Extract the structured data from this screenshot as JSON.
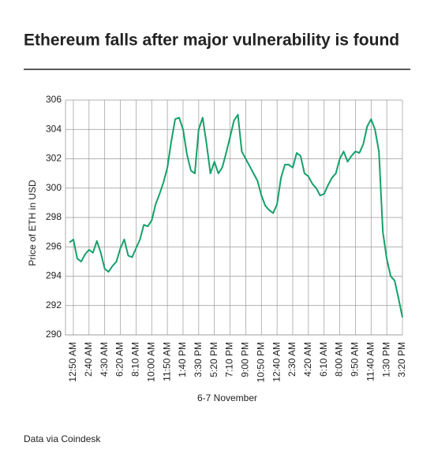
{
  "chart_data": {
    "type": "line",
    "title": "Ethereum falls after major vulnerability is found",
    "ylabel": "Price of ETH in USD",
    "xlabel": "6-7 November",
    "source": "Data via Coindesk",
    "categories": [
      null,
      "12:50 AM",
      null,
      null,
      null,
      "2:40 AM",
      null,
      null,
      null,
      "4:30 AM",
      null,
      null,
      null,
      "6:20 AM",
      null,
      null,
      null,
      "8:10 AM",
      null,
      null,
      null,
      "10:00 AM",
      null,
      null,
      null,
      "11:50 AM",
      null,
      null,
      null,
      "1:40 PM",
      null,
      null,
      null,
      "3:30 PM",
      null,
      null,
      null,
      "5:20 PM",
      null,
      null,
      null,
      "7:10 PM",
      null,
      null,
      null,
      "9:00 PM",
      null,
      null,
      null,
      "10:50 PM",
      null,
      null,
      null,
      "12:40 AM",
      null,
      null,
      null,
      "2:30 AM",
      null,
      null,
      null,
      "4:20 AM",
      null,
      null,
      null,
      "6:10 AM",
      null,
      null,
      null,
      "8:00 AM",
      null,
      null,
      null,
      "9:50 AM",
      null,
      null,
      null,
      "11:40 AM",
      null,
      null,
      null,
      "1:30 PM",
      null,
      null,
      null,
      "3:20 PM"
    ],
    "values": [
      296.3,
      296.5,
      295.2,
      295.0,
      295.5,
      295.8,
      295.6,
      296.4,
      295.6,
      294.5,
      294.3,
      294.7,
      295.0,
      295.9,
      296.5,
      295.4,
      295.3,
      295.9,
      296.5,
      297.5,
      297.4,
      297.8,
      298.9,
      299.6,
      300.4,
      301.4,
      303.2,
      304.7,
      304.8,
      304.0,
      302.3,
      301.2,
      301.0,
      304.0,
      304.8,
      303.0,
      301.0,
      301.8,
      301.0,
      301.4,
      302.4,
      303.5,
      304.6,
      305.0,
      302.5,
      302.0,
      301.5,
      301.0,
      300.5,
      299.5,
      298.8,
      298.5,
      298.3,
      298.9,
      300.7,
      301.6,
      301.6,
      301.4,
      302.4,
      302.2,
      301.0,
      300.8,
      300.3,
      300.0,
      299.5,
      299.6,
      300.2,
      300.7,
      301.0,
      302.0,
      302.5,
      301.8,
      302.2,
      302.5,
      302.4,
      303.0,
      304.2,
      304.7,
      304.0,
      302.5,
      297.0,
      295.2,
      294.0,
      293.7,
      292.5,
      291.2
    ],
    "color": "#16a06b",
    "ylim": [
      290,
      306
    ],
    "yticks": [
      290,
      292,
      294,
      296,
      298,
      300,
      302,
      304,
      306
    ],
    "grid": true
  }
}
